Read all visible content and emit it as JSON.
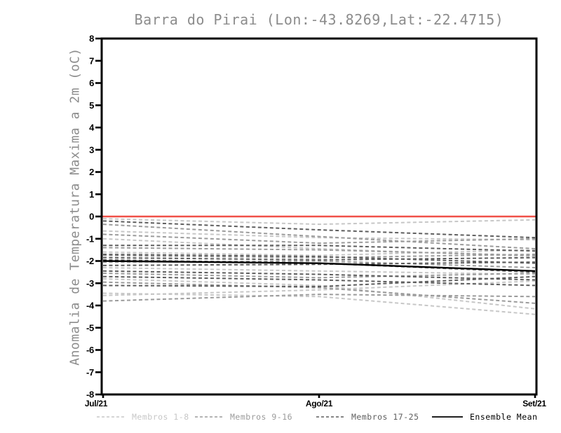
{
  "page": {
    "background": "#ffffff"
  },
  "chart_data": {
    "type": "line",
    "title": "Barra do Pirai (Lon:-43.8269,Lat:-22.4715)",
    "ylabel": "Anomalia de Temperatura Maxima a 2m (oC)",
    "xlabel": "",
    "x_categories": [
      "Jul/21",
      "Ago/21",
      "Set/21"
    ],
    "ylim": [
      -8,
      8
    ],
    "yticks": [
      8,
      7,
      6,
      5,
      4,
      3,
      2,
      1,
      0,
      -1,
      -2,
      -3,
      -4,
      -5,
      -6,
      -7,
      -8
    ],
    "grid": false,
    "legend_position": "bottom",
    "axis_color": "#000000",
    "title_color": "#8c8c8c",
    "zero_line": {
      "value": 0,
      "color": "#f05048"
    },
    "groups": [
      {
        "name": "Membros 1-8",
        "color": "#c7c7c7",
        "style": "dashed",
        "series": [
          [
            -0.1,
            -0.35,
            -0.15
          ],
          [
            -0.65,
            -0.95,
            -1.05
          ],
          [
            -1.0,
            -1.45,
            -1.8
          ],
          [
            -1.6,
            -1.75,
            -1.5
          ],
          [
            -2.3,
            -2.45,
            -2.6
          ],
          [
            -2.8,
            -3.1,
            -4.15
          ],
          [
            -3.45,
            -3.6,
            -4.4
          ],
          [
            -3.55,
            -3.3,
            -2.9
          ]
        ]
      },
      {
        "name": "Membros 9-16",
        "color": "#9b9b9b",
        "style": "dashed",
        "series": [
          [
            -0.35,
            -0.9,
            -1.45
          ],
          [
            -0.8,
            -1.2,
            -1.0
          ],
          [
            -1.4,
            -1.5,
            -1.75
          ],
          [
            -1.75,
            -1.85,
            -1.7
          ],
          [
            -2.05,
            -2.0,
            -2.3
          ],
          [
            -2.55,
            -2.75,
            -2.55
          ],
          [
            -2.95,
            -3.2,
            -3.9
          ],
          [
            -3.8,
            -3.5,
            -3.6
          ]
        ]
      },
      {
        "name": "Membros 17-25",
        "color": "#5e5e5e",
        "style": "dashed",
        "series": [
          [
            -0.2,
            -0.6,
            -0.95
          ],
          [
            -1.3,
            -1.3,
            -1.55
          ],
          [
            -1.7,
            -1.8,
            -2.1
          ],
          [
            -1.85,
            -1.95,
            -1.85
          ],
          [
            -1.95,
            -2.1,
            -2.5
          ],
          [
            -2.2,
            -2.15,
            -2.05
          ],
          [
            -2.45,
            -2.6,
            -2.85
          ],
          [
            -2.7,
            -2.85,
            -3.1
          ],
          [
            -3.1,
            -3.15,
            -2.7
          ]
        ]
      },
      {
        "name": "Ensemble Mean",
        "color": "#000000",
        "style": "solid",
        "series": [
          [
            -2.0,
            -2.1,
            -2.45
          ]
        ]
      }
    ]
  }
}
